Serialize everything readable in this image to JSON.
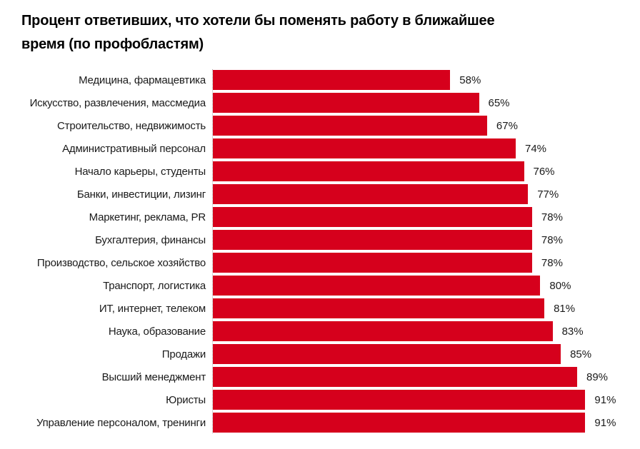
{
  "header": {
    "title_lines": [
      "Процент ответивших, что хотели бы поменять работу в ближайшее",
      "время (по профобластям)"
    ]
  },
  "chart_data": {
    "type": "bar",
    "orientation": "horizontal",
    "title": "Процент ответивших, что хотели бы поменять работу в ближайшее время (по профобластям)",
    "categories": [
      "Медицина, фармацевтика",
      "Искусство, развлечения, массмедиа",
      "Строительство, недвижимость",
      "Административный персонал",
      "Начало карьеры, студенты",
      "Банки, инвестиции, лизинг",
      "Маркетинг, реклама, PR",
      "Бухгалтерия, финансы",
      "Производство, сельское хозяйство",
      "Транспорт, логистика",
      "ИТ, интернет, телеком",
      "Наука, образование",
      "Продажи",
      "Высший менеджмент",
      "Юристы",
      "Управление персоналом, тренинги"
    ],
    "values": [
      58,
      65,
      67,
      74,
      76,
      77,
      78,
      78,
      78,
      80,
      81,
      83,
      85,
      89,
      91,
      91
    ],
    "value_suffix": "%",
    "xlabel": "",
    "ylabel": "",
    "xlim": [
      0,
      100
    ],
    "grid": false,
    "legend": false,
    "bar_color": "#d6001c",
    "label_color": "#1a1a1a",
    "value_color": "#1a1a1a",
    "axis_line_color": "#b3b3b3",
    "title_color": "#000000",
    "background_color": "#ffffff"
  }
}
